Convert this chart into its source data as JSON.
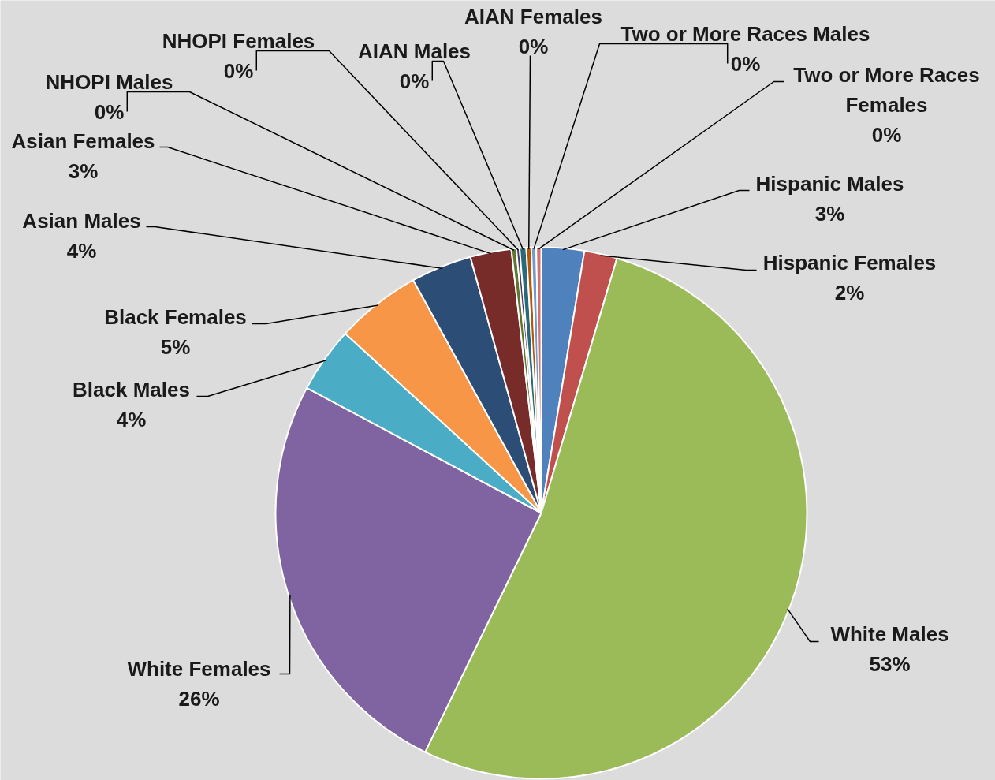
{
  "chart_data": {
    "type": "pie",
    "categories": [
      "Hispanic Males",
      "Hispanic Females",
      "White Males",
      "White Females",
      "Black Males",
      "Black Females",
      "Asian Males",
      "Asian Females",
      "NHOPI Males",
      "NHOPI Females",
      "AIAN Males",
      "AIAN Females",
      "Two or More Races Males",
      "Two or More Races Females"
    ],
    "values": [
      2.6,
      2.0,
      52.6,
      25.6,
      4.0,
      5.2,
      3.7,
      2.5,
      0.3,
      0.2,
      0.4,
      0.3,
      0.3,
      0.3
    ],
    "colors": [
      "#4f81bd",
      "#c0504d",
      "#9bbb59",
      "#8064a2",
      "#4bacc6",
      "#f79646",
      "#2c4d75",
      "#772c2a",
      "#5f7530",
      "#4d3b62",
      "#276a7c",
      "#b65708",
      "#729aca",
      "#cd7371"
    ],
    "value_labels": [
      "3%",
      "2%",
      "53%",
      "26%",
      "4%",
      "5%",
      "4%",
      "3%",
      "0%",
      "0%",
      "0%",
      "0%",
      "0%",
      "0%"
    ]
  }
}
